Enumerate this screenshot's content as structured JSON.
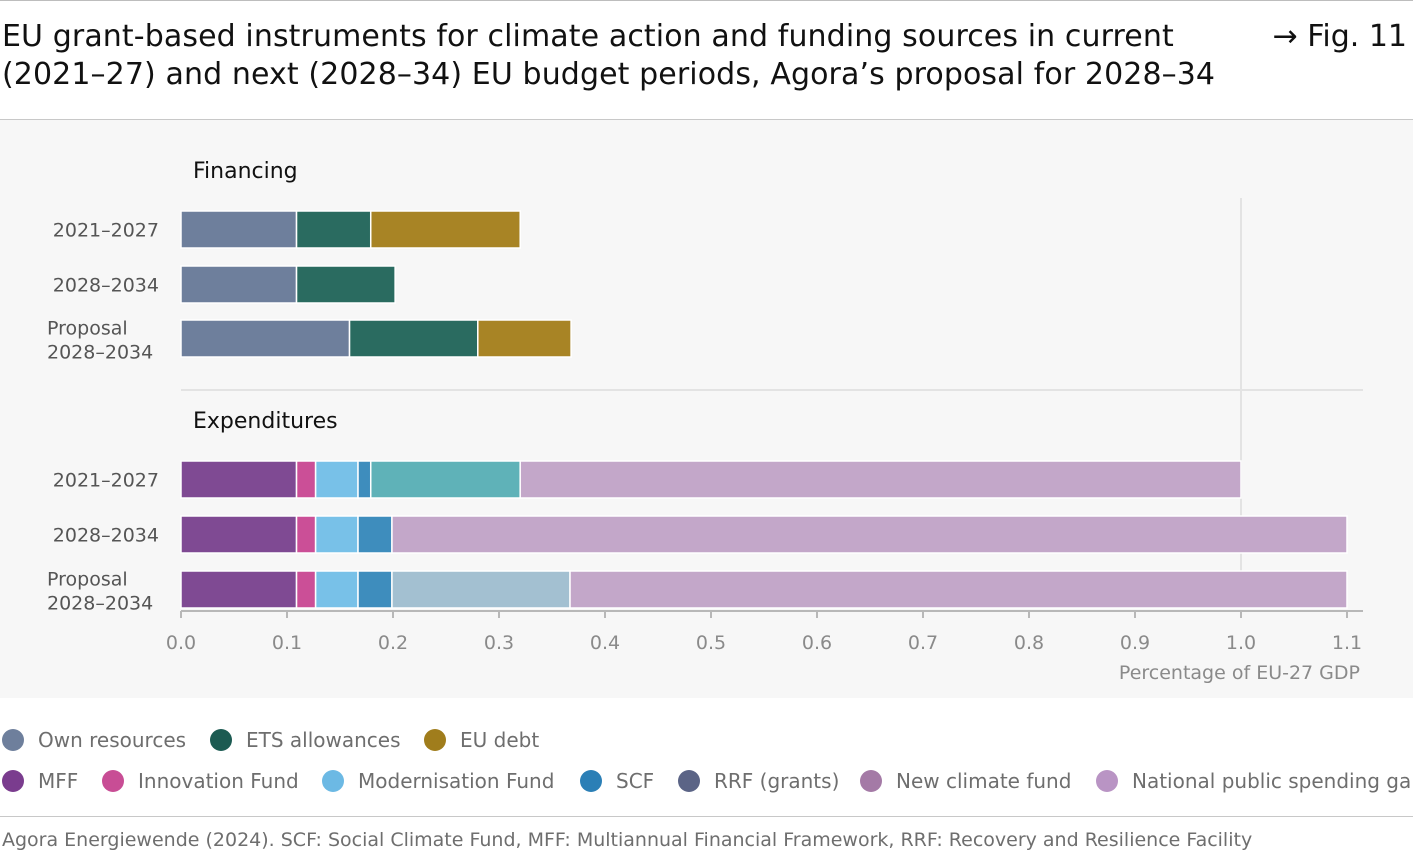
{
  "header": {
    "title": "EU grant-based instruments for climate action and funding sources in current (2021–27) and next (2028–34) EU budget periods, Agora’s proposal for 2028–34",
    "fig_label": "→ Fig. 11"
  },
  "chart_data": {
    "type": "bar",
    "orientation": "horizontal",
    "stacked": true,
    "xlabel": "Percentage of EU-27 GDP",
    "xlim": [
      0,
      1.1
    ],
    "xticks": [
      "0.0",
      "0.1",
      "0.2",
      "0.3",
      "0.4",
      "0.5",
      "0.6",
      "0.7",
      "0.8",
      "0.9",
      "1.0",
      "1.1"
    ],
    "grid": "vertical line at 1.0",
    "legend_position": "bottom",
    "panels": [
      {
        "title": "Financing",
        "categories": [
          "2021–2027",
          "2028–2034",
          "Proposal 2028–2034"
        ],
        "series": [
          {
            "name": "Own resources",
            "color": "#6e7f9c",
            "values": [
              0.109,
              0.109,
              0.159
            ]
          },
          {
            "name": "ETS allowances",
            "color": "#2a6b60",
            "values": [
              0.07,
              0.093,
              0.121
            ]
          },
          {
            "name": "EU debt",
            "color": "#a88425",
            "values": [
              0.141,
              0,
              0.088
            ]
          }
        ]
      },
      {
        "title": "Expenditures",
        "categories": [
          "2021–2027",
          "2028–2034",
          "Proposal 2028–2034"
        ],
        "series": [
          {
            "name": "MFF",
            "color": "#7f4a93",
            "values": [
              0.109,
              0.109,
              0.109
            ]
          },
          {
            "name": "Innovation Fund",
            "color": "#cb4f97",
            "values": [
              0.018,
              0.018,
              0.018
            ]
          },
          {
            "name": "Modernisation Fund",
            "color": "#78c1e8",
            "values": [
              0.04,
              0.04,
              0.04
            ]
          },
          {
            "name": "SCF",
            "color": "#3e8dbd",
            "values": [
              0.012,
              0.032,
              0.032
            ]
          },
          {
            "name": "RRF (grants)",
            "color": "#5fb2b8",
            "values": [
              0.141,
              0,
              0
            ]
          },
          {
            "name": "New climate fund",
            "color": "#a3c0d1",
            "values": [
              0,
              0,
              0.168
            ]
          },
          {
            "name": "National public spending gap",
            "color": "#c3a7c9",
            "values": [
              0.68,
              0.901,
              0.733
            ]
          }
        ]
      }
    ]
  },
  "legend": {
    "row1": [
      {
        "label": "Own resources",
        "color": "#6e7f9c"
      },
      {
        "label": "ETS allowances",
        "color": "#1c5b52"
      },
      {
        "label": "EU debt",
        "color": "#a07d1c"
      }
    ],
    "row2": [
      {
        "label": "MFF",
        "color": "#7a3c8e"
      },
      {
        "label": "Innovation Fund",
        "color": "#c84d95"
      },
      {
        "label": "Modernisation Fund",
        "color": "#6cb9e4"
      },
      {
        "label": "SCF",
        "color": "#2b7fb6"
      },
      {
        "label": "RRF (grants)",
        "color": "#5b6486"
      },
      {
        "label": "New climate fund",
        "color": "#a47aa6"
      },
      {
        "label": "National public spending gap",
        "color": "#b994c4"
      }
    ]
  },
  "source": "Agora Energiewende (2024). SCF: Social Climate Fund, MFF: Multiannual Financial Framework, RRF: Recovery and Resilience Facility"
}
